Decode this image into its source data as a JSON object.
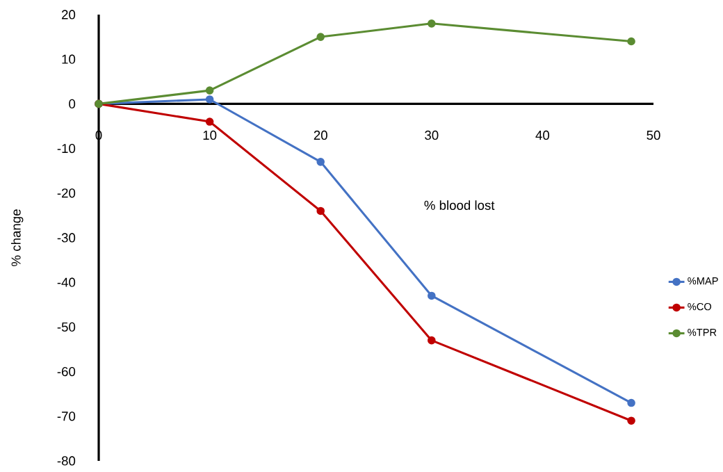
{
  "chart_data": {
    "type": "line",
    "xlabel": "% blood lost",
    "ylabel": "% change",
    "x": [
      0,
      10,
      20,
      30,
      48
    ],
    "series": [
      {
        "name": "%MAP",
        "color": "#4472c4",
        "values": [
          0,
          1,
          -13,
          -43,
          -67
        ]
      },
      {
        "name": "%CO",
        "color": "#c00000",
        "values": [
          0,
          -4,
          -24,
          -53,
          -71
        ]
      },
      {
        "name": "%TPR",
        "color": "#5b8c32",
        "values": [
          0,
          3,
          15,
          18,
          14
        ]
      }
    ],
    "xlim": [
      0,
      50
    ],
    "ylim": [
      -80,
      20
    ],
    "xticks": [
      0,
      10,
      20,
      30,
      40,
      50
    ],
    "yticks": [
      -80,
      -70,
      -60,
      -50,
      -40,
      -30,
      -20,
      -10,
      0,
      10,
      20
    ],
    "grid": false,
    "legend": "right",
    "marker": "circle",
    "line_style": "solid"
  }
}
